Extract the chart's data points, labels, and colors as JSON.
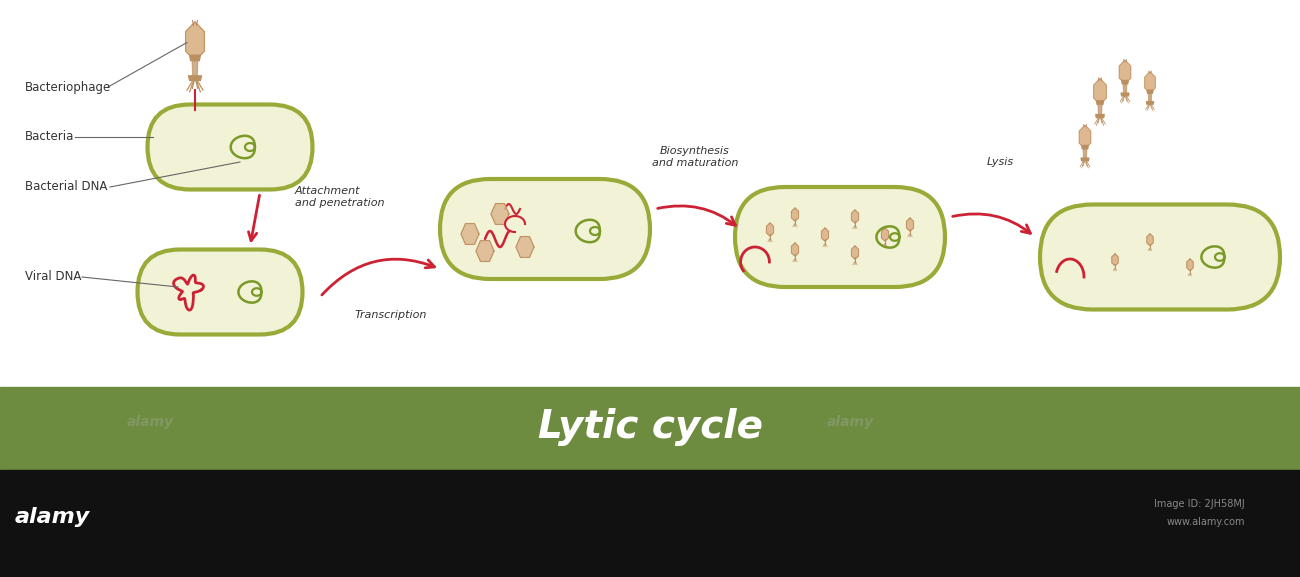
{
  "title": "Lytic cycle",
  "title_color": "#ffffff",
  "title_bg_color": "#6e8c3f",
  "bottom_bar_color": "#111111",
  "white_bg": "#ffffff",
  "cell_fill": "#f2f2d6",
  "cell_edge": "#9aaa38",
  "cell_edge_width": 3.0,
  "dna_green_color": "#7a9a28",
  "dna_red_color": "#cc2233",
  "phage_body_color": "#ddb890",
  "phage_leg_color": "#bb9060",
  "phage_tail_color": "#cc9955",
  "arrow_color": "#cc2233",
  "label_color": "#333333",
  "label_fontsize": 8.5,
  "stage_label_fontsize": 8.0,
  "title_fontsize": 28,
  "labels": [
    "Bacteriophage",
    "Bacteria",
    "Bacterial DNA",
    "Viral DNA"
  ],
  "stage_labels": [
    "Attachment\nand penetration",
    "Transcription",
    "Biosynthesis\nand maturation",
    "Lysis"
  ]
}
